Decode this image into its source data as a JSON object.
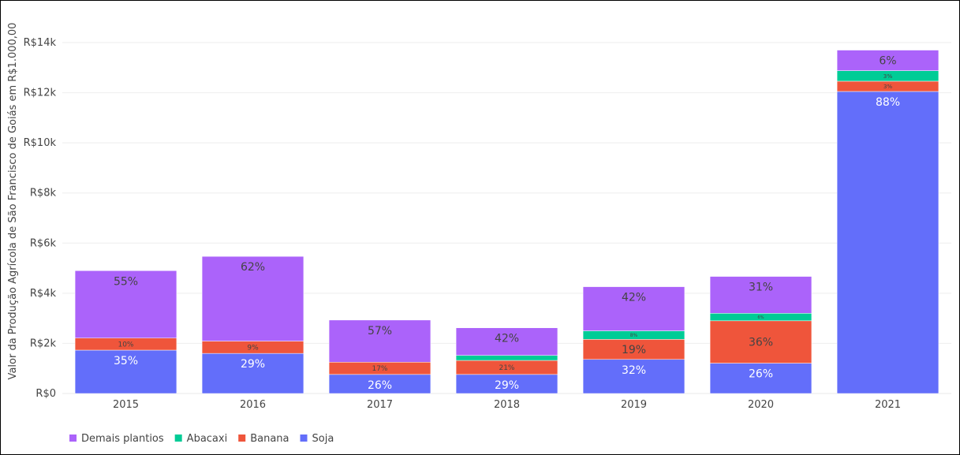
{
  "chart_data": {
    "type": "bar",
    "stacked": true,
    "title": "",
    "xlabel": "",
    "ylabel": "Valor da Produção Agrícola de São Francisco de Goiás em R$1.000,00",
    "ylim": [
      0,
      14000
    ],
    "yticks": [
      0,
      2000,
      4000,
      6000,
      8000,
      10000,
      12000,
      14000
    ],
    "ytick_labels": [
      "R$0",
      "R$2k",
      "R$4k",
      "R$6k",
      "R$8k",
      "R$10k",
      "R$12k",
      "R$14k"
    ],
    "grid": true,
    "legend_position": "bottom-left",
    "categories": [
      "2015",
      "2016",
      "2017",
      "2018",
      "2019",
      "2020",
      "2021"
    ],
    "series": [
      {
        "name": "Soja",
        "color": "#636efa",
        "values": [
          1730,
          1600,
          760,
          760,
          1360,
          1210,
          12050
        ],
        "labels": [
          "35%",
          "29%",
          "26%",
          "29%",
          "32%",
          "26%",
          "88%"
        ]
      },
      {
        "name": "Banana",
        "color": "#ef553b",
        "values": [
          480,
          490,
          490,
          560,
          800,
          1690,
          410
        ],
        "labels": [
          "10%",
          "9%",
          "17%",
          "21%",
          "19%",
          "36%",
          "3%"
        ]
      },
      {
        "name": "Abacaxi",
        "color": "#00cc96",
        "values": [
          0,
          0,
          0,
          200,
          340,
          300,
          420
        ],
        "labels": [
          "",
          "",
          "",
          "",
          "8%",
          "6%",
          "3%"
        ]
      },
      {
        "name": "Demais plantios",
        "color": "#ab63fa",
        "values": [
          2690,
          3380,
          1680,
          1100,
          1760,
          1470,
          820
        ],
        "labels": [
          "55%",
          "62%",
          "57%",
          "42%",
          "42%",
          "31%",
          "6%"
        ]
      }
    ],
    "legend_order": [
      "Demais plantios",
      "Abacaxi",
      "Banana",
      "Soja"
    ]
  }
}
